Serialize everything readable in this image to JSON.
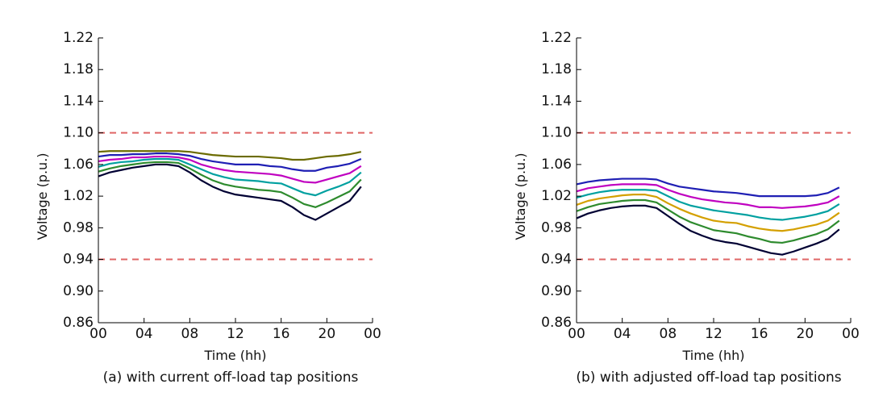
{
  "chart_data": [
    {
      "type": "line",
      "xlabel": "Time (hh)",
      "ylabel": "Voltage (p.u.)",
      "caption": "(a) with current off-load tap positions",
      "x": [
        0,
        1,
        2,
        3,
        4,
        5,
        6,
        7,
        8,
        9,
        10,
        11,
        12,
        13,
        14,
        15,
        16,
        17,
        18,
        19,
        20,
        21,
        22,
        23
      ],
      "xlim": [
        0,
        24
      ],
      "xticks": [
        {
          "value": 0,
          "label": "00"
        },
        {
          "value": 4,
          "label": "04"
        },
        {
          "value": 8,
          "label": "08"
        },
        12,
        16,
        20,
        {
          "value": 24,
          "label": "00"
        }
      ],
      "ylim": [
        0.86,
        1.22
      ],
      "yticks": [
        0.86,
        {
          "value": 0.9,
          "label": "0.90"
        },
        0.94,
        0.98,
        1.02,
        1.06,
        {
          "value": 1.1,
          "label": "1.10"
        },
        1.14,
        1.18,
        1.22
      ],
      "reference_lines": [
        {
          "value": 1.1,
          "color": "#e06666"
        },
        {
          "value": 0.94,
          "color": "#e06666"
        }
      ],
      "series": [
        {
          "color": "#6b6b00",
          "values": [
            1.076,
            1.077,
            1.077,
            1.077,
            1.077,
            1.077,
            1.077,
            1.077,
            1.076,
            1.074,
            1.072,
            1.071,
            1.07,
            1.07,
            1.07,
            1.069,
            1.068,
            1.066,
            1.066,
            1.068,
            1.07,
            1.071,
            1.073,
            1.076
          ]
        },
        {
          "color": "#1f1fb4",
          "values": [
            1.07,
            1.072,
            1.072,
            1.073,
            1.073,
            1.074,
            1.074,
            1.073,
            1.071,
            1.067,
            1.064,
            1.062,
            1.06,
            1.06,
            1.06,
            1.058,
            1.057,
            1.054,
            1.052,
            1.052,
            1.056,
            1.058,
            1.061,
            1.067
          ]
        },
        {
          "color": "#c000c0",
          "values": [
            1.064,
            1.066,
            1.067,
            1.069,
            1.069,
            1.07,
            1.07,
            1.069,
            1.066,
            1.06,
            1.056,
            1.053,
            1.051,
            1.05,
            1.049,
            1.048,
            1.046,
            1.042,
            1.038,
            1.037,
            1.041,
            1.045,
            1.049,
            1.058
          ]
        },
        {
          "color": "#00a0a0",
          "values": [
            1.057,
            1.061,
            1.063,
            1.064,
            1.066,
            1.067,
            1.067,
            1.066,
            1.06,
            1.054,
            1.048,
            1.044,
            1.041,
            1.04,
            1.039,
            1.037,
            1.036,
            1.03,
            1.024,
            1.021,
            1.027,
            1.032,
            1.038,
            1.05
          ]
        },
        {
          "color": "#2e8b2e",
          "values": [
            1.051,
            1.055,
            1.058,
            1.06,
            1.062,
            1.063,
            1.063,
            1.062,
            1.055,
            1.047,
            1.04,
            1.035,
            1.032,
            1.03,
            1.028,
            1.027,
            1.025,
            1.018,
            1.01,
            1.006,
            1.012,
            1.019,
            1.026,
            1.041
          ]
        },
        {
          "color": "#000033",
          "values": [
            1.045,
            1.05,
            1.053,
            1.056,
            1.058,
            1.06,
            1.06,
            1.058,
            1.05,
            1.04,
            1.032,
            1.026,
            1.022,
            1.02,
            1.018,
            1.016,
            1.014,
            1.006,
            0.996,
            0.99,
            0.998,
            1.006,
            1.014,
            1.032
          ]
        }
      ]
    },
    {
      "type": "line",
      "xlabel": "Time (hh)",
      "ylabel": "Voltage (p.u.)",
      "caption": "(b) with adjusted off-load tap positions",
      "x": [
        0,
        1,
        2,
        3,
        4,
        5,
        6,
        7,
        8,
        9,
        10,
        11,
        12,
        13,
        14,
        15,
        16,
        17,
        18,
        19,
        20,
        21,
        22,
        23
      ],
      "xlim": [
        0,
        24
      ],
      "xticks": [
        {
          "value": 0,
          "label": "00"
        },
        {
          "value": 4,
          "label": "04"
        },
        {
          "value": 8,
          "label": "08"
        },
        12,
        16,
        20,
        {
          "value": 24,
          "label": "00"
        }
      ],
      "ylim": [
        0.86,
        1.22
      ],
      "yticks": [
        0.86,
        {
          "value": 0.9,
          "label": "0.90"
        },
        0.94,
        0.98,
        1.02,
        1.06,
        {
          "value": 1.1,
          "label": "1.10"
        },
        1.14,
        1.18,
        1.22
      ],
      "reference_lines": [
        {
          "value": 1.1,
          "color": "#e06666"
        },
        {
          "value": 0.94,
          "color": "#e06666"
        }
      ],
      "series": [
        {
          "color": "#1f1fb4",
          "values": [
            1.035,
            1.038,
            1.04,
            1.041,
            1.042,
            1.042,
            1.042,
            1.041,
            1.036,
            1.032,
            1.03,
            1.028,
            1.026,
            1.025,
            1.024,
            1.022,
            1.02,
            1.02,
            1.02,
            1.02,
            1.02,
            1.021,
            1.024,
            1.031
          ]
        },
        {
          "color": "#c000c0",
          "values": [
            1.026,
            1.03,
            1.032,
            1.034,
            1.035,
            1.035,
            1.035,
            1.034,
            1.028,
            1.023,
            1.019,
            1.016,
            1.014,
            1.012,
            1.011,
            1.009,
            1.006,
            1.006,
            1.005,
            1.006,
            1.007,
            1.009,
            1.012,
            1.02
          ]
        },
        {
          "color": "#00a0a0",
          "values": [
            1.018,
            1.022,
            1.025,
            1.027,
            1.028,
            1.028,
            1.028,
            1.027,
            1.02,
            1.013,
            1.008,
            1.005,
            1.002,
            1.0,
            0.998,
            0.996,
            0.993,
            0.991,
            0.99,
            0.992,
            0.994,
            0.997,
            1.001,
            1.01
          ]
        },
        {
          "color": "#d4a000",
          "values": [
            1.009,
            1.014,
            1.017,
            1.019,
            1.021,
            1.022,
            1.022,
            1.019,
            1.011,
            1.004,
            0.998,
            0.993,
            0.989,
            0.987,
            0.986,
            0.982,
            0.979,
            0.977,
            0.976,
            0.978,
            0.981,
            0.984,
            0.989,
            0.999
          ]
        },
        {
          "color": "#2e8b2e",
          "values": [
            1.001,
            1.006,
            1.01,
            1.012,
            1.014,
            1.015,
            1.015,
            1.012,
            1.003,
            0.994,
            0.987,
            0.982,
            0.977,
            0.975,
            0.973,
            0.969,
            0.966,
            0.962,
            0.961,
            0.964,
            0.968,
            0.972,
            0.978,
            0.989
          ]
        },
        {
          "color": "#000033",
          "values": [
            0.992,
            0.998,
            1.002,
            1.005,
            1.007,
            1.008,
            1.008,
            1.005,
            0.995,
            0.985,
            0.976,
            0.97,
            0.965,
            0.962,
            0.96,
            0.956,
            0.952,
            0.948,
            0.946,
            0.95,
            0.955,
            0.96,
            0.966,
            0.978
          ]
        }
      ]
    }
  ]
}
